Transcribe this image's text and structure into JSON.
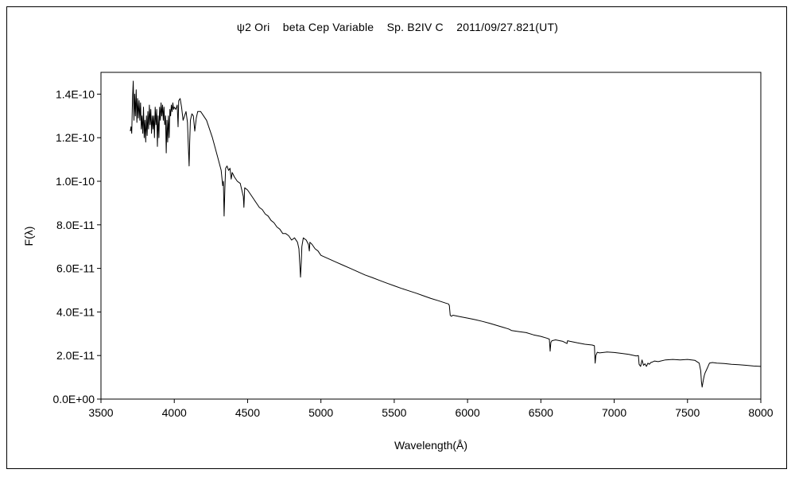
{
  "chart_data": {
    "type": "line",
    "title": "ψ2 Ori    beta Cep Variable    Sp. B2IV C    2011/09/27.821(UT)",
    "xlabel": "Wavelength(Å)",
    "ylabel": "F(λ)",
    "xlim": [
      3500,
      8000
    ],
    "ylim": [
      0,
      1.5e-10
    ],
    "x_ticks": [
      3500,
      4000,
      4500,
      5000,
      5500,
      6000,
      6500,
      7000,
      7500,
      8000
    ],
    "x_tick_labels": [
      "3500",
      "4000",
      "4500",
      "5000",
      "5500",
      "6000",
      "6500",
      "7000",
      "7500",
      "8000"
    ],
    "y_ticks": [
      0,
      2e-11,
      4e-11,
      6e-11,
      8e-11,
      1e-10,
      1.2e-10,
      1.4e-10
    ],
    "y_tick_labels": [
      "0.0E+00",
      "2.0E-11",
      "4.0E-11",
      "6.0E-11",
      "8.0E-11",
      "1.0E-10",
      "1.2E-10",
      "1.4E-10"
    ],
    "grid": false,
    "legend": "none",
    "line_color": "#000000",
    "series": [
      {
        "x": [
          3700,
          3705,
          3710,
          3715,
          3720,
          3725,
          3730,
          3735,
          3740,
          3745,
          3750,
          3755,
          3760,
          3765,
          3770,
          3775,
          3780,
          3785,
          3790,
          3795,
          3800,
          3805,
          3810,
          3815,
          3820,
          3825,
          3830,
          3835,
          3840,
          3845,
          3850,
          3855,
          3860,
          3865,
          3870,
          3875,
          3880,
          3885,
          3890,
          3895,
          3900,
          3905,
          3910,
          3915,
          3920,
          3925,
          3930,
          3935,
          3940,
          3945,
          3950,
          3955,
          3960,
          3965,
          3970,
          3975,
          3980,
          3985,
          3990,
          3995,
          4000,
          4010,
          4020,
          4026,
          4030,
          4040,
          4050,
          4060,
          4070,
          4080,
          4090,
          4095,
          4101,
          4105,
          4110,
          4120,
          4130,
          4140,
          4150,
          4160,
          4180,
          4200,
          4220,
          4240,
          4260,
          4280,
          4300,
          4320,
          4330,
          4335,
          4340,
          4345,
          4350,
          4360,
          4370,
          4380,
          4388,
          4395,
          4410,
          4430,
          4450,
          4471,
          4475,
          4480,
          4500,
          4520,
          4540,
          4560,
          4580,
          4600,
          4620,
          4640,
          4660,
          4680,
          4700,
          4720,
          4740,
          4760,
          4780,
          4800,
          4820,
          4840,
          4850,
          4856,
          4861,
          4866,
          4870,
          4880,
          4900,
          4915,
          4921,
          4925,
          4940,
          4960,
          4980,
          5000,
          5050,
          5100,
          5150,
          5200,
          5250,
          5300,
          5350,
          5400,
          5450,
          5500,
          5550,
          5600,
          5650,
          5700,
          5750,
          5800,
          5850,
          5870,
          5876,
          5882,
          5890,
          5900,
          5950,
          6000,
          6050,
          6100,
          6150,
          6200,
          6250,
          6280,
          6300,
          6350,
          6400,
          6450,
          6500,
          6540,
          6558,
          6563,
          6568,
          6575,
          6600,
          6650,
          6678,
          6682,
          6700,
          6750,
          6800,
          6850,
          6865,
          6870,
          6875,
          6885,
          6900,
          6950,
          7000,
          7050,
          7100,
          7150,
          7165,
          7170,
          7180,
          7190,
          7200,
          7210,
          7220,
          7230,
          7240,
          7250,
          7260,
          7275,
          7300,
          7350,
          7400,
          7450,
          7500,
          7550,
          7580,
          7590,
          7595,
          7600,
          7605,
          7610,
          7615,
          7620,
          7630,
          7640,
          7650,
          7670,
          7700,
          7750,
          7800,
          7850,
          7900,
          7950,
          8000
        ],
        "y": [
          1.23e-10,
          1.25e-10,
          1.22e-10,
          1.38e-10,
          1.46e-10,
          1.28e-10,
          1.4e-10,
          1.3e-10,
          1.42e-10,
          1.27e-10,
          1.38e-10,
          1.29e-10,
          1.37e-10,
          1.28e-10,
          1.36e-10,
          1.24e-10,
          1.3e-10,
          1.22e-10,
          1.34e-10,
          1.2e-10,
          1.28e-10,
          1.18e-10,
          1.3e-10,
          1.21e-10,
          1.32e-10,
          1.24e-10,
          1.35e-10,
          1.26e-10,
          1.33e-10,
          1.22e-10,
          1.3e-10,
          1.24e-10,
          1.3e-10,
          1.2e-10,
          1.34e-10,
          1.26e-10,
          1.33e-10,
          1.16e-10,
          1.3e-10,
          1.2e-10,
          1.34e-10,
          1.28e-10,
          1.36e-10,
          1.3e-10,
          1.35e-10,
          1.28e-10,
          1.34e-10,
          1.26e-10,
          1.3e-10,
          1.13e-10,
          1.28e-10,
          1.18e-10,
          1.3e-10,
          1.2e-10,
          1.33e-10,
          1.3e-10,
          1.35e-10,
          1.32e-10,
          1.36e-10,
          1.33e-10,
          1.34e-10,
          1.33e-10,
          1.35e-10,
          1.25e-10,
          1.37e-10,
          1.38e-10,
          1.34e-10,
          1.28e-10,
          1.3e-10,
          1.32e-10,
          1.27e-10,
          1.18e-10,
          1.07e-10,
          1.18e-10,
          1.28e-10,
          1.31e-10,
          1.3e-10,
          1.23e-10,
          1.29e-10,
          1.32e-10,
          1.32e-10,
          1.3e-10,
          1.28e-10,
          1.24e-10,
          1.2e-10,
          1.15e-10,
          1.1e-10,
          1.05e-10,
          9.8e-11,
          1e-10,
          8.4e-11,
          9.7e-11,
          1.06e-10,
          1.07e-10,
          1.05e-10,
          1.06e-10,
          1.01e-10,
          1.04e-10,
          1.02e-10,
          1e-10,
          9.9e-11,
          9.3e-11,
          8.8e-11,
          9.7e-11,
          9.6e-11,
          9.4e-11,
          9.2e-11,
          9e-11,
          8.8e-11,
          8.7e-11,
          8.5e-11,
          8.4e-11,
          8.2e-11,
          8.1e-11,
          7.9e-11,
          7.8e-11,
          7.6e-11,
          7.6e-11,
          7.5e-11,
          7.3e-11,
          7.4e-11,
          7.2e-11,
          6.9e-11,
          6.2e-11,
          5.6e-11,
          6.3e-11,
          7e-11,
          7.4e-11,
          7.3e-11,
          7.1e-11,
          6.8e-11,
          7.2e-11,
          7.1e-11,
          6.9e-11,
          6.8e-11,
          6.6e-11,
          6.45e-11,
          6.3e-11,
          6.15e-11,
          6e-11,
          5.85e-11,
          5.7e-11,
          5.58e-11,
          5.45e-11,
          5.32e-11,
          5.2e-11,
          5.08e-11,
          4.97e-11,
          4.86e-11,
          4.74e-11,
          4.62e-11,
          4.52e-11,
          4.41e-11,
          4.37e-11,
          4.3e-11,
          3.85e-11,
          3.8e-11,
          3.85e-11,
          3.78e-11,
          3.72e-11,
          3.65e-11,
          3.57e-11,
          3.48e-11,
          3.38e-11,
          3.28e-11,
          3.22e-11,
          3.15e-11,
          3.1e-11,
          3.05e-11,
          2.95e-11,
          2.88e-11,
          2.8e-11,
          2.75e-11,
          2.2e-11,
          2.6e-11,
          2.68e-11,
          2.72e-11,
          2.65e-11,
          2.55e-11,
          2.68e-11,
          2.65e-11,
          2.58e-11,
          2.52e-11,
          2.48e-11,
          2.45e-11,
          1.65e-11,
          2e-11,
          2.15e-11,
          2.12e-11,
          2.16e-11,
          2.14e-11,
          2.1e-11,
          2.05e-11,
          1.98e-11,
          2e-11,
          1.6e-11,
          1.5e-11,
          1.8e-11,
          1.55e-11,
          1.62e-11,
          1.5e-11,
          1.65e-11,
          1.6e-11,
          1.68e-11,
          1.7e-11,
          1.75e-11,
          1.72e-11,
          1.8e-11,
          1.82e-11,
          1.8e-11,
          1.82e-11,
          1.78e-11,
          1.65e-11,
          1.3e-11,
          8e-12,
          5.5e-12,
          7.5e-12,
          9.5e-12,
          1.1e-11,
          1.2e-11,
          1.35e-11,
          1.5e-11,
          1.65e-11,
          1.68e-11,
          1.65e-11,
          1.63e-11,
          1.6e-11,
          1.58e-11,
          1.55e-11,
          1.52e-11,
          1.5e-11
        ]
      }
    ]
  }
}
